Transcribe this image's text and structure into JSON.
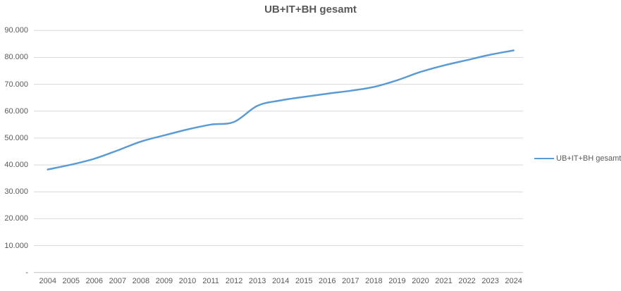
{
  "chart_data": {
    "type": "line",
    "title": "UB+IT+BH gesamt",
    "x": [
      "2004",
      "2005",
      "2006",
      "2007",
      "2008",
      "2009",
      "2010",
      "2011",
      "2012",
      "2013",
      "2014",
      "2015",
      "2016",
      "2017",
      "2018",
      "2019",
      "2020",
      "2021",
      "2022",
      "2023",
      "2024"
    ],
    "series": [
      {
        "name": "UB+IT+BH gesamt",
        "values": [
          38300,
          40100,
          42300,
          45400,
          48700,
          51000,
          53200,
          55000,
          56000,
          62000,
          64000,
          65300,
          66500,
          67600,
          69000,
          71500,
          74600,
          77000,
          79000,
          81000,
          82600
        ]
      }
    ],
    "ylim": [
      0,
      90000
    ],
    "ytick_interval": 10000,
    "ytick_labels": [
      "-",
      "10.000",
      "20.000",
      "30.000",
      "40.000",
      "50.000",
      "60.000",
      "70.000",
      "80.000",
      "90.000"
    ],
    "grid": "horizontal-only",
    "smoothed_line": true,
    "legend_position": "right",
    "legend_label": "UB+IT+BH gesamt",
    "colors": {
      "line": "#5B9BD5",
      "gridline": "#D9D9D9",
      "axis_line": "#BFBFBF",
      "text": "#595959",
      "background": "#FFFFFF"
    }
  }
}
